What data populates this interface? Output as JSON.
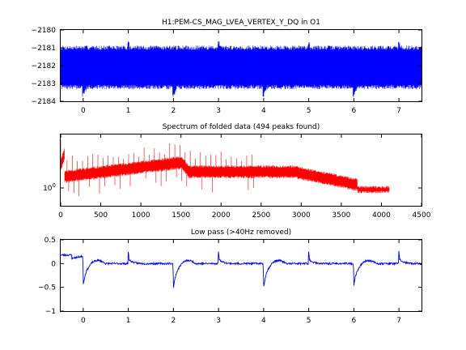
{
  "chart_data": [
    {
      "type": "line",
      "title": "H1:PEM-CS_MAG_LVEA_VERTEX_Y_DQ in O1",
      "xlabel": "",
      "ylabel": "",
      "xlim": [
        -0.5,
        7.5
      ],
      "ylim": [
        -2184,
        -2180
      ],
      "xticks": [
        0,
        1,
        2,
        3,
        4,
        5,
        6,
        7
      ],
      "yticks": [
        -2184,
        -2183,
        -2182,
        -2181,
        -2180
      ],
      "series": [
        {
          "color": "#0000ff",
          "band_upper": -2181.0,
          "band_lower": -2183.2,
          "dips_at": [
            0,
            2,
            4,
            6
          ],
          "spikes_at": [
            1,
            3,
            5,
            7
          ]
        }
      ]
    },
    {
      "type": "line",
      "title": "Spectrum of folded data (494 peaks found)",
      "xlabel": "",
      "ylabel": "",
      "xlim": [
        0,
        4500
      ],
      "yscale": "log",
      "xticks": [
        0,
        500,
        1000,
        1500,
        2000,
        2500,
        3000,
        3500,
        4000,
        4500
      ],
      "yticks": [
        1
      ],
      "ytick_labels": [
        "10^0"
      ],
      "series": [
        {
          "color": "#ff0000",
          "x_end": 4100,
          "peak_count": 494
        }
      ]
    },
    {
      "type": "line",
      "title": "Low pass (>40Hz removed)",
      "xlabel": "",
      "ylabel": "",
      "xlim": [
        -0.5,
        7.5
      ],
      "ylim": [
        -1,
        0.5
      ],
      "xticks": [
        0,
        1,
        2,
        3,
        4,
        5,
        6,
        7
      ],
      "yticks": [
        -1,
        -0.5,
        0,
        0.5
      ],
      "series": [
        {
          "color": "#0000ff",
          "baseline": 0.0,
          "dips_at": [
            0,
            2,
            4,
            6
          ],
          "dip_values": [
            -0.45,
            -0.52,
            -0.5,
            -0.46
          ],
          "spikes_at": [
            1,
            3,
            5,
            7
          ],
          "spike_values": [
            0.28,
            0.3,
            0.28,
            0.3
          ]
        }
      ]
    }
  ]
}
